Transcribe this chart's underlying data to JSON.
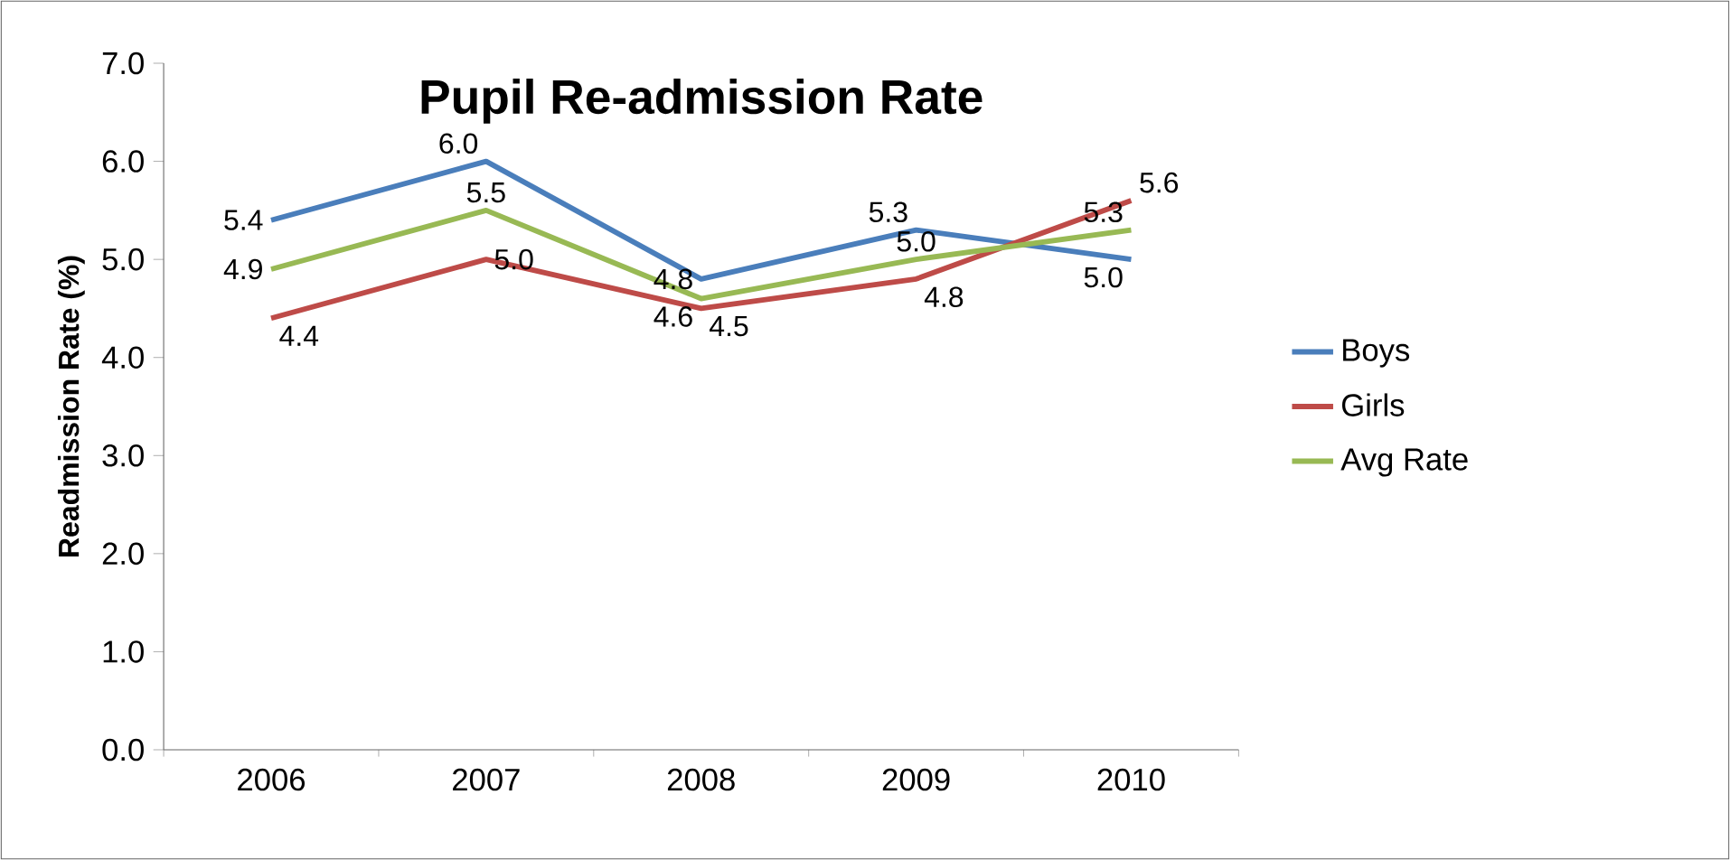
{
  "chart_data": {
    "type": "line",
    "title": "Pupil Re-admission Rate",
    "ylabel": "Readmission Rate (%)",
    "categories": [
      "2006",
      "2007",
      "2008",
      "2009",
      "2010"
    ],
    "series": [
      {
        "name": "Boys",
        "color": "#4a7ebb",
        "values": [
          5.4,
          6.0,
          4.8,
          5.3,
          5.0
        ],
        "value_labels": [
          "5.4",
          "6.0",
          "4.8",
          "5.3",
          "5.0"
        ]
      },
      {
        "name": "Girls",
        "color": "#be4b48",
        "values": [
          4.4,
          5.0,
          4.5,
          4.8,
          5.6
        ],
        "value_labels": [
          "4.4",
          "5.0",
          "4.5",
          "4.8",
          "5.6"
        ]
      },
      {
        "name": "Avg Rate",
        "color": "#98b954",
        "values": [
          4.9,
          5.5,
          4.6,
          5.0,
          5.3
        ],
        "value_labels": [
          "4.9",
          "5.5",
          "4.6",
          "5.0",
          "5.3"
        ]
      }
    ],
    "ylim": [
      0,
      7
    ],
    "yticks": [
      {
        "value": 0,
        "label": "0.0"
      },
      {
        "value": 1,
        "label": "1.0"
      },
      {
        "value": 2,
        "label": "2.0"
      },
      {
        "value": 3,
        "label": "3.0"
      },
      {
        "value": 4,
        "label": "4.0"
      },
      {
        "value": 5,
        "label": "5.0"
      },
      {
        "value": 6,
        "label": "6.0"
      },
      {
        "value": 7,
        "label": "7.0"
      }
    ],
    "legend": "right",
    "marker": "none",
    "line_style": "solid"
  }
}
